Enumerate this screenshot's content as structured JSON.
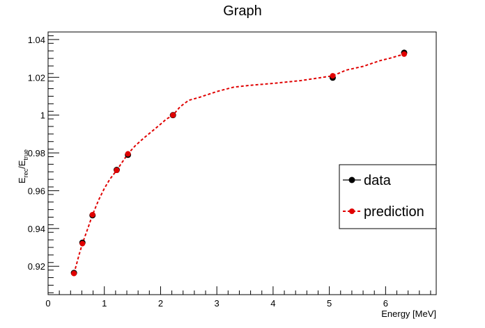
{
  "chart_data": {
    "type": "scatter",
    "title": "Graph",
    "xlabel": "Energy [MeV]",
    "ylabel_main": "E",
    "ylabel_sub1": "rec",
    "ylabel_mid": "/E",
    "ylabel_sub2": "true",
    "xlim": [
      0,
      6.9
    ],
    "ylim": [
      0.905,
      1.044
    ],
    "x_ticks": [
      0,
      1,
      2,
      3,
      4,
      5,
      6
    ],
    "x_tick_labels": [
      "0",
      "1",
      "2",
      "3",
      "4",
      "5",
      "6"
    ],
    "y_ticks": [
      0.92,
      0.94,
      0.96,
      0.98,
      1.0,
      1.02,
      1.04
    ],
    "y_tick_labels": [
      "0.92",
      "0.94",
      "0.96",
      "0.98",
      "1",
      "1.02",
      "1.04"
    ],
    "grid": false,
    "legend_position": "right",
    "series": [
      {
        "name": "data",
        "color": "#000000",
        "style": "markers",
        "x": [
          0.46,
          0.61,
          0.79,
          1.22,
          1.42,
          2.22,
          5.06,
          6.33
        ],
        "y": [
          0.9165,
          0.9325,
          0.947,
          0.971,
          0.979,
          1.0,
          1.0198,
          1.033
        ]
      },
      {
        "name": "prediction",
        "color": "#e00000",
        "style": "dashed-line-markers",
        "x": [
          0.46,
          0.61,
          0.79,
          1.22,
          1.42,
          2.22,
          5.06,
          6.33
        ],
        "y": [
          0.9162,
          0.932,
          0.9473,
          0.9708,
          0.9795,
          1.0,
          1.0208,
          1.0323
        ],
        "curve_x": [
          0.46,
          0.5,
          0.55,
          0.61,
          0.7,
          0.79,
          0.9,
          1.0,
          1.1,
          1.22,
          1.32,
          1.42,
          1.55,
          1.7,
          1.85,
          2.0,
          2.1,
          2.22,
          2.35,
          2.5,
          2.7,
          3.0,
          3.3,
          3.6,
          4.0,
          4.5,
          5.06,
          5.3,
          5.6,
          5.9,
          6.1,
          6.33
        ],
        "curve_y": [
          0.9162,
          0.9205,
          0.926,
          0.932,
          0.9395,
          0.9473,
          0.9552,
          0.9612,
          0.9662,
          0.9708,
          0.9752,
          0.9795,
          0.9838,
          0.9878,
          0.9915,
          0.9952,
          0.9978,
          1.0,
          1.0045,
          1.0078,
          1.0095,
          1.0125,
          1.0148,
          1.0158,
          1.0168,
          1.0183,
          1.0208,
          1.0238,
          1.0258,
          1.0288,
          1.0303,
          1.0323
        ]
      }
    ]
  }
}
